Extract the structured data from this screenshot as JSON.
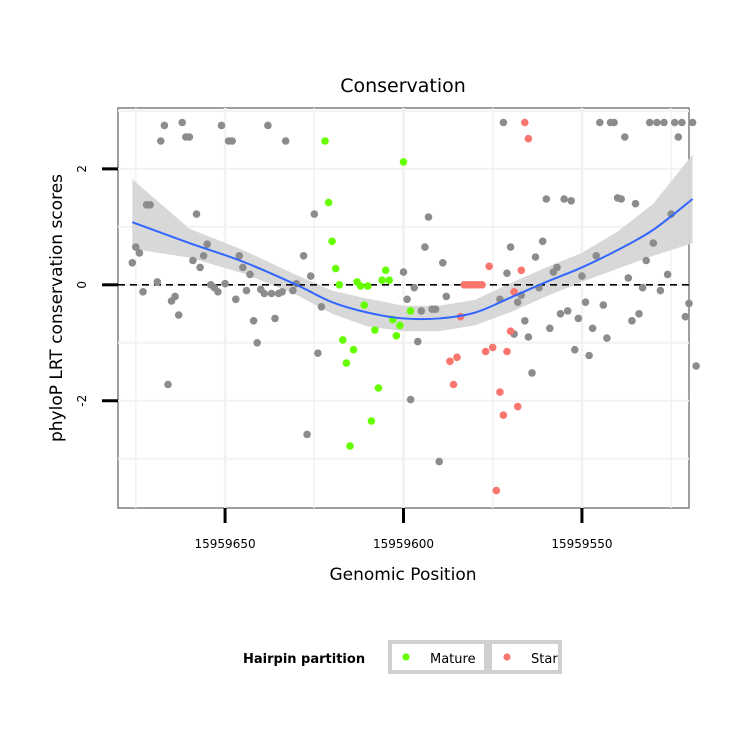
{
  "chart_data": {
    "type": "scatter",
    "title": "Conservation",
    "xlabel": "Genomic Position",
    "ylabel": "phyloP LRT conservation scores",
    "x_axis_reversed": true,
    "xlim": [
      15959680,
      15959520
    ],
    "ylim": [
      -3.85,
      3.05
    ],
    "xticks": [
      15959650,
      15959600,
      15959550
    ],
    "xtick_labels": [
      "15959650",
      "15959600",
      "15959550"
    ],
    "yticks": [
      -2,
      0,
      2
    ],
    "ytick_labels": [
      "-2",
      "0",
      "2"
    ],
    "reference_line": {
      "y": 0,
      "style": "dashed",
      "color": "#000000"
    },
    "legend": {
      "title": "Hairpin partition",
      "position": "bottom",
      "entries": [
        {
          "label": "Mature",
          "color": "#66FF00"
        },
        {
          "label": "Star",
          "color": "#F8766D"
        }
      ]
    },
    "colors": {
      "Other": "#8C8C8C",
      "Mature": "#66FF00",
      "Star": "#F8766D",
      "smooth": "#3366FF",
      "ribbon": "#D6D6D6"
    },
    "series": [
      {
        "name": "Other",
        "points": [
          [
            15959676,
            0.38
          ],
          [
            15959675,
            0.65
          ],
          [
            15959674,
            0.55
          ],
          [
            15959673,
            -0.12
          ],
          [
            15959672,
            1.38
          ],
          [
            15959671,
            1.38
          ],
          [
            15959669,
            0.05
          ],
          [
            15959668,
            2.48
          ],
          [
            15959667,
            2.75
          ],
          [
            15959666,
            -1.72
          ],
          [
            15959665,
            -0.28
          ],
          [
            15959664,
            -0.2
          ],
          [
            15959663,
            -0.52
          ],
          [
            15959662,
            2.8
          ],
          [
            15959661,
            2.55
          ],
          [
            15959660,
            2.55
          ],
          [
            15959659,
            0.42
          ],
          [
            15959658,
            1.22
          ],
          [
            15959657,
            0.3
          ],
          [
            15959656,
            0.5
          ],
          [
            15959655,
            0.7
          ],
          [
            15959654,
            0.0
          ],
          [
            15959653,
            -0.05
          ],
          [
            15959652,
            -0.12
          ],
          [
            15959651,
            2.75
          ],
          [
            15959650,
            0.02
          ],
          [
            15959649,
            2.48
          ],
          [
            15959648,
            2.48
          ],
          [
            15959647,
            -0.25
          ],
          [
            15959646,
            0.5
          ],
          [
            15959645,
            0.3
          ],
          [
            15959644,
            -0.1
          ],
          [
            15959643,
            0.18
          ],
          [
            15959642,
            -0.62
          ],
          [
            15959641,
            -1.0
          ],
          [
            15959640,
            -0.08
          ],
          [
            15959639,
            -0.15
          ],
          [
            15959638,
            2.75
          ],
          [
            15959637,
            -0.15
          ],
          [
            15959636,
            -0.58
          ],
          [
            15959635,
            -0.15
          ],
          [
            15959634,
            -0.12
          ],
          [
            15959633,
            2.48
          ],
          [
            15959631,
            -0.1
          ],
          [
            15959630,
            0.02
          ],
          [
            15959628,
            0.5
          ],
          [
            15959627,
            -2.58
          ],
          [
            15959626,
            0.15
          ],
          [
            15959625,
            1.22
          ],
          [
            15959624,
            -1.18
          ],
          [
            15959623,
            -0.38
          ],
          [
            15959600,
            0.22
          ],
          [
            15959599,
            -0.25
          ],
          [
            15959598,
            -1.98
          ],
          [
            15959597,
            -0.05
          ],
          [
            15959596,
            -0.98
          ],
          [
            15959595,
            -0.45
          ],
          [
            15959594,
            0.65
          ],
          [
            15959593,
            1.17
          ],
          [
            15959592,
            -0.42
          ],
          [
            15959591,
            -0.42
          ],
          [
            15959590,
            -3.05
          ],
          [
            15959589,
            0.38
          ],
          [
            15959588,
            -0.2
          ],
          [
            15959573,
            -0.25
          ],
          [
            15959572,
            2.8
          ],
          [
            15959571,
            0.2
          ],
          [
            15959570,
            0.65
          ],
          [
            15959569,
            -0.85
          ],
          [
            15959568,
            -0.3
          ],
          [
            15959567,
            -0.18
          ],
          [
            15959566,
            -0.62
          ],
          [
            15959565,
            -0.9
          ],
          [
            15959564,
            -1.52
          ],
          [
            15959563,
            0.48
          ],
          [
            15959562,
            -0.05
          ],
          [
            15959561,
            0.75
          ],
          [
            15959560,
            1.48
          ],
          [
            15959559,
            -0.75
          ],
          [
            15959558,
            0.22
          ],
          [
            15959557,
            0.3
          ],
          [
            15959556,
            -0.5
          ],
          [
            15959555,
            1.48
          ],
          [
            15959554,
            -0.45
          ],
          [
            15959553,
            1.45
          ],
          [
            15959552,
            -1.12
          ],
          [
            15959551,
            -0.58
          ],
          [
            15959550,
            0.15
          ],
          [
            15959549,
            -0.3
          ],
          [
            15959548,
            -1.22
          ],
          [
            15959547,
            -0.75
          ],
          [
            15959546,
            0.5
          ],
          [
            15959545,
            2.8
          ],
          [
            15959544,
            -0.35
          ],
          [
            15959543,
            -0.92
          ],
          [
            15959542,
            2.8
          ],
          [
            15959541,
            2.8
          ],
          [
            15959540,
            1.5
          ],
          [
            15959539,
            1.48
          ],
          [
            15959538,
            2.55
          ],
          [
            15959537,
            0.12
          ],
          [
            15959536,
            -0.62
          ],
          [
            15959535,
            1.4
          ],
          [
            15959534,
            -0.5
          ],
          [
            15959533,
            -0.05
          ],
          [
            15959532,
            0.42
          ],
          [
            15959531,
            2.8
          ],
          [
            15959530,
            0.72
          ],
          [
            15959529,
            2.8
          ],
          [
            15959528,
            -0.1
          ],
          [
            15959527,
            2.8
          ],
          [
            15959526,
            0.18
          ],
          [
            15959525,
            1.22
          ],
          [
            15959524,
            2.8
          ],
          [
            15959523,
            2.55
          ],
          [
            15959522,
            2.8
          ],
          [
            15959521,
            -0.55
          ],
          [
            15959520,
            -0.32
          ],
          [
            15959519,
            2.8
          ],
          [
            15959518,
            -1.4
          ]
        ]
      },
      {
        "name": "Mature",
        "points": [
          [
            15959622,
            2.48
          ],
          [
            15959621,
            1.42
          ],
          [
            15959620,
            0.75
          ],
          [
            15959619,
            0.28
          ],
          [
            15959618,
            0.0
          ],
          [
            15959617,
            -0.95
          ],
          [
            15959616,
            -1.35
          ],
          [
            15959615,
            -2.78
          ],
          [
            15959614,
            -1.12
          ],
          [
            15959613,
            0.05
          ],
          [
            15959612,
            -0.02
          ],
          [
            15959611,
            -0.35
          ],
          [
            15959610,
            -0.02
          ],
          [
            15959609,
            -2.35
          ],
          [
            15959608,
            -0.78
          ],
          [
            15959607,
            -1.78
          ],
          [
            15959606,
            0.08
          ],
          [
            15959605,
            0.25
          ],
          [
            15959604,
            0.08
          ],
          [
            15959603,
            -0.6
          ],
          [
            15959602,
            -0.88
          ],
          [
            15959601,
            -0.7
          ],
          [
            15959600,
            2.12
          ],
          [
            15959598,
            -0.45
          ]
        ]
      },
      {
        "name": "Star",
        "points": [
          [
            15959587,
            -1.32
          ],
          [
            15959586,
            -1.72
          ],
          [
            15959585,
            -1.25
          ],
          [
            15959584,
            -0.55
          ],
          [
            15959583,
            0.0
          ],
          [
            15959582,
            0.0
          ],
          [
            15959581,
            0.0
          ],
          [
            15959580,
            0.0
          ],
          [
            15959579,
            0.0
          ],
          [
            15959578,
            0.0
          ],
          [
            15959577,
            -1.15
          ],
          [
            15959576,
            0.32
          ],
          [
            15959575,
            -1.08
          ],
          [
            15959574,
            -3.55
          ],
          [
            15959573,
            -1.85
          ],
          [
            15959572,
            -2.25
          ],
          [
            15959571,
            -1.15
          ],
          [
            15959570,
            -0.8
          ],
          [
            15959569,
            -0.12
          ],
          [
            15959568,
            -2.1
          ],
          [
            15959567,
            0.25
          ],
          [
            15959566,
            2.8
          ],
          [
            15959565,
            2.52
          ]
        ]
      }
    ],
    "smooth": {
      "method": "loess",
      "x": [
        15959676,
        15959660,
        15959645,
        15959630,
        15959620,
        15959610,
        15959600,
        15959590,
        15959580,
        15959570,
        15959560,
        15959550,
        15959540,
        15959530,
        15959519
      ],
      "y": [
        1.08,
        0.72,
        0.4,
        0.0,
        -0.3,
        -0.48,
        -0.58,
        -0.58,
        -0.48,
        -0.22,
        0.05,
        0.3,
        0.6,
        0.95,
        1.48
      ],
      "ymin": [
        0.62,
        0.47,
        0.2,
        -0.17,
        -0.5,
        -0.72,
        -0.8,
        -0.8,
        -0.7,
        -0.47,
        -0.2,
        0.05,
        0.28,
        0.5,
        0.72
      ],
      "ymax": [
        1.82,
        0.97,
        0.6,
        0.17,
        -0.1,
        -0.24,
        -0.36,
        -0.36,
        -0.26,
        0.03,
        0.3,
        0.55,
        0.92,
        1.4,
        2.25
      ]
    }
  }
}
